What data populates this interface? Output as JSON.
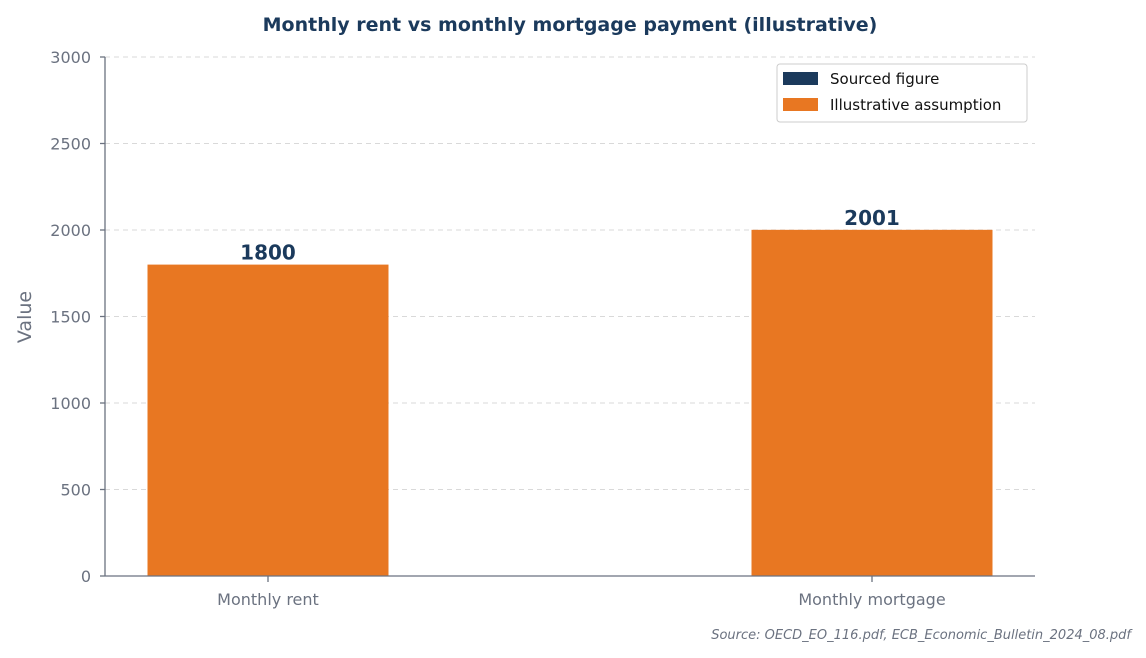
{
  "chart_data": {
    "type": "bar",
    "title": "Monthly rent vs monthly mortgage payment (illustrative)",
    "xlabel": "",
    "ylabel": "Value",
    "categories": [
      "Monthly rent",
      "Monthly mortgage"
    ],
    "values": [
      1800,
      2001
    ],
    "data_labels": [
      "1800",
      "2001"
    ],
    "bar_kinds": [
      "assumption",
      "assumption"
    ],
    "ylim": [
      0,
      3000
    ],
    "yticks": [
      0,
      500,
      1000,
      1500,
      2000,
      2500,
      3000
    ],
    "ytick_labels": [
      "0",
      "500",
      "1000",
      "1500",
      "2000",
      "2500",
      "3000"
    ],
    "grid": true,
    "legend_position": "top-right",
    "legend": [
      {
        "label": "Sourced figure",
        "color": "#1b3a5c"
      },
      {
        "label": "Illustrative assumption",
        "color": "#e87722"
      }
    ],
    "colors": {
      "sourced": "#1b3a5c",
      "assumption": "#e87722"
    },
    "source_note": "Source: OECD_EO_116.pdf, ECB_Economic_Bulletin_2024_08.pdf"
  }
}
